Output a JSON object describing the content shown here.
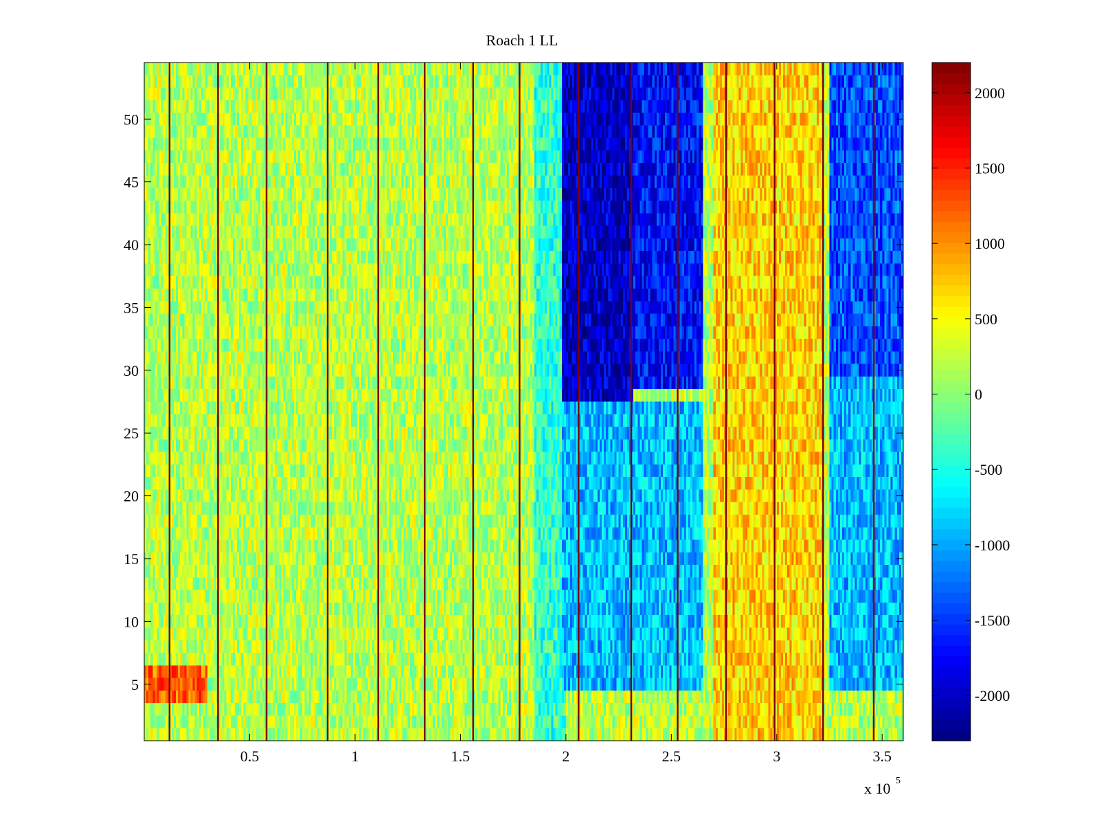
{
  "chart_data": {
    "type": "heatmap",
    "title": "Roach 1 LL",
    "xlabel": "",
    "ylabel": "",
    "x_multiplier_label": "x 10",
    "x_multiplier_exponent": "5",
    "xlim": [
      0,
      360000
    ],
    "ylim": [
      0.5,
      54.5
    ],
    "x_ticks": [
      {
        "value": 50000,
        "label": "0.5"
      },
      {
        "value": 100000,
        "label": "1"
      },
      {
        "value": 150000,
        "label": "1.5"
      },
      {
        "value": 200000,
        "label": "2"
      },
      {
        "value": 250000,
        "label": "2.5"
      },
      {
        "value": 300000,
        "label": "3"
      },
      {
        "value": 350000,
        "label": "3.5"
      }
    ],
    "y_ticks": [
      {
        "value": 5,
        "label": "5"
      },
      {
        "value": 10,
        "label": "10"
      },
      {
        "value": 15,
        "label": "15"
      },
      {
        "value": 20,
        "label": "20"
      },
      {
        "value": 25,
        "label": "25"
      },
      {
        "value": 30,
        "label": "30"
      },
      {
        "value": 35,
        "label": "35"
      },
      {
        "value": 40,
        "label": "40"
      },
      {
        "value": 45,
        "label": "45"
      },
      {
        "value": 50,
        "label": "50"
      }
    ],
    "colormap": "jet",
    "color_limits": [
      -2300,
      2200
    ],
    "colorbar_ticks": [
      {
        "value": 2000,
        "label": "2000"
      },
      {
        "value": 1500,
        "label": "1500"
      },
      {
        "value": 1000,
        "label": "1000"
      },
      {
        "value": 500,
        "label": "500"
      },
      {
        "value": 0,
        "label": "0"
      },
      {
        "value": -500,
        "label": "-500"
      },
      {
        "value": -1000,
        "label": "-1000"
      },
      {
        "value": -1500,
        "label": "-1500"
      },
      {
        "value": -2000,
        "label": "-2000"
      }
    ],
    "rows": 54,
    "x_columns": 360,
    "vertical_lines_x": [
      12000,
      35000,
      58000,
      87000,
      111000,
      133000,
      156000,
      178000,
      206000,
      231000,
      253000,
      276000,
      299000,
      322000,
      346000
    ],
    "regions": [
      {
        "x": [
          0,
          30000
        ],
        "y": [
          4,
          7
        ],
        "value": 1200
      },
      {
        "x": [
          30000,
          185000
        ],
        "y": [
          0.5,
          54.5
        ],
        "value": 200
      },
      {
        "x": [
          185000,
          200000
        ],
        "y": [
          0.5,
          54.5
        ],
        "value": -400
      },
      {
        "x": [
          198000,
          232000
        ],
        "y": [
          28,
          54.5
        ],
        "value": -2000
      },
      {
        "x": [
          232000,
          265000
        ],
        "y": [
          29,
          54.5
        ],
        "value": -1700
      },
      {
        "x": [
          198000,
          265000
        ],
        "y": [
          5,
          28
        ],
        "value": -900
      },
      {
        "x": [
          270000,
          322000
        ],
        "y": [
          0.5,
          54.5
        ],
        "value": 700
      },
      {
        "x": [
          325000,
          360000
        ],
        "y": [
          30,
          54.5
        ],
        "value": -1400
      },
      {
        "x": [
          325000,
          360000
        ],
        "y": [
          5,
          30
        ],
        "value": -900
      }
    ]
  }
}
